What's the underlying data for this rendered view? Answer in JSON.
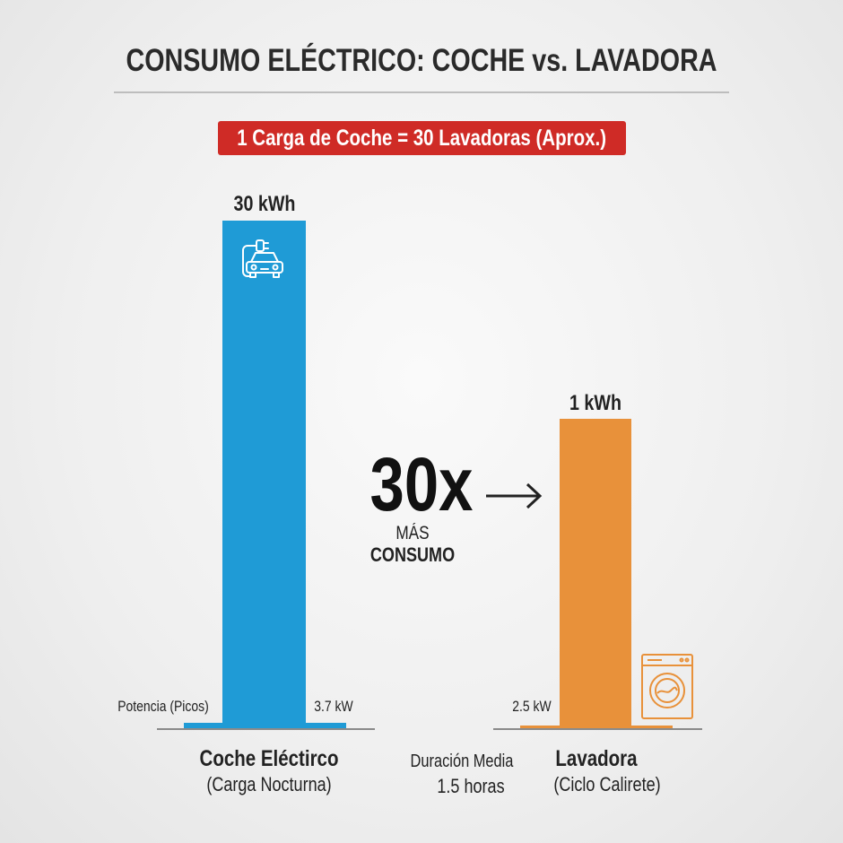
{
  "title": "CONSUMO ELÉCTRICO: COCHE vs. LAVADORA",
  "banner": "1 Carga de Coche = 30 Lavadoras (Aprox.)",
  "colors": {
    "car": "#1f9bd6",
    "washer": "#e8913a",
    "banner": "#cf2b26"
  },
  "multiplier": {
    "value": "30x",
    "line1": "MÁS",
    "line2": "CONSUMO",
    "icon": "arrow-right-icon"
  },
  "power_label": "Potencia (Picos)",
  "duration": {
    "label": "Duración Media",
    "value": "1.5 horas"
  },
  "chart_data": {
    "type": "bar",
    "categories": [
      "Coche Eléctirco",
      "Lavadora"
    ],
    "subtitles": [
      "(Carga Nocturna)",
      "(Ciclo Calirete)"
    ],
    "values": [
      30,
      1
    ],
    "value_labels": [
      "30 kWh",
      "1 kWh"
    ],
    "unit": "kWh",
    "peak_power": [
      3.7,
      2.5
    ],
    "peak_power_labels": [
      "3.7 kW",
      "2.5 kW"
    ],
    "icons": [
      "electric-car-plug-icon",
      "washing-machine-icon"
    ]
  }
}
